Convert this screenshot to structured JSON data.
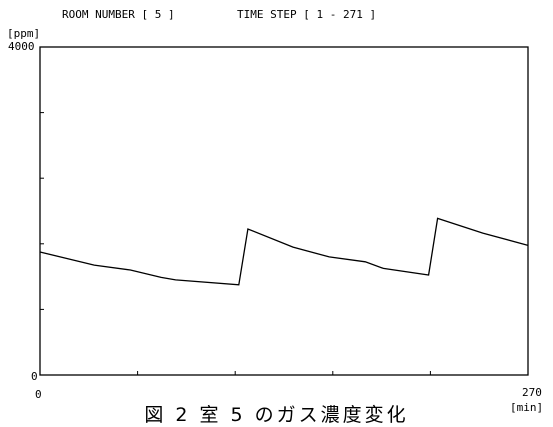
{
  "chart_data": {
    "type": "line",
    "header_room": "ROOM NUMBER [ 5 ]",
    "header_time": "TIME STEP [ 1 - 271 ]",
    "caption": "図 2 室 5 のガス濃度変化",
    "ylabel": "[ppm]",
    "xlabel": "[min]",
    "xlim": [
      0,
      270
    ],
    "ylim": [
      0,
      4000
    ],
    "x_tick_labels": [
      "0",
      "270"
    ],
    "y_tick_labels": [
      "0",
      "4000"
    ],
    "series": [
      {
        "x": [
          0,
          30,
          50,
          67,
          75,
          110,
          115,
          140,
          160,
          180,
          190,
          215,
          220,
          245,
          270
        ],
        "y": [
          1500,
          1340,
          1280,
          1190,
          1160,
          1100,
          1780,
          1560,
          1440,
          1380,
          1300,
          1220,
          1910,
          1730,
          1580
        ]
      }
    ]
  }
}
